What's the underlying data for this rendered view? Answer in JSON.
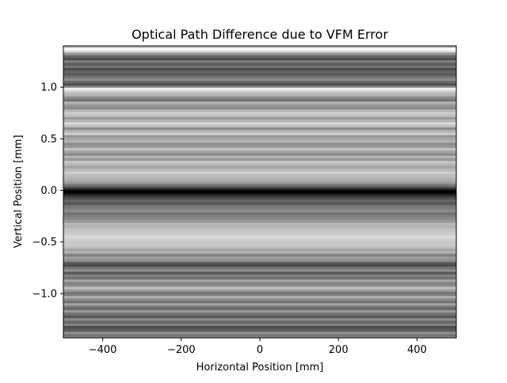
{
  "chart_data": {
    "type": "heatmap",
    "title": "Optical Path Difference due to VFM Error",
    "xlabel": "Horizontal Position [mm]",
    "ylabel": "Vertical Position [mm]",
    "xlim": [
      -500,
      500
    ],
    "ylim": [
      -1.43,
      1.4
    ],
    "xticks": [
      -400,
      -200,
      0,
      200,
      400
    ],
    "xtick_labels": [
      "−400",
      "−200",
      "0",
      "200",
      "400"
    ],
    "yticks": [
      -1.0,
      -0.5,
      0.0,
      0.5,
      1.0
    ],
    "ytick_labels": [
      "−1.0",
      "−0.5",
      "0.0",
      "0.5",
      "1.0"
    ],
    "colormap": "gray",
    "grid": false,
    "colorbar": false,
    "note_variation": "values constant along horizontal axis; vary only with vertical position",
    "profile_vertical_mm": [
      -1.43,
      -1.4,
      -1.38,
      -1.35,
      -1.32,
      -1.3,
      -1.27,
      -1.25,
      -1.22,
      -1.19,
      -1.17,
      -1.14,
      -1.12,
      -1.1,
      -1.08,
      -1.05,
      -1.03,
      -1.01,
      -0.99,
      -0.97,
      -0.94,
      -0.92,
      -0.9,
      -0.87,
      -0.85,
      -0.82,
      -0.8,
      -0.77,
      -0.75,
      -0.72,
      -0.7,
      -0.68,
      -0.65,
      -0.62,
      -0.6,
      -0.57,
      -0.55,
      -0.52,
      -0.5,
      -0.47,
      -0.45,
      -0.42,
      -0.4,
      -0.37,
      -0.35,
      -0.32,
      -0.3,
      -0.27,
      -0.25,
      -0.22,
      -0.2,
      -0.17,
      -0.15,
      -0.12,
      -0.1,
      -0.07,
      -0.05,
      -0.03,
      -0.01,
      0.0,
      0.01,
      0.03,
      0.05,
      0.08,
      0.1,
      0.13,
      0.15,
      0.18,
      0.2,
      0.23,
      0.25,
      0.28,
      0.3,
      0.33,
      0.35,
      0.38,
      0.4,
      0.43,
      0.45,
      0.48,
      0.5,
      0.53,
      0.55,
      0.58,
      0.6,
      0.63,
      0.65,
      0.68,
      0.7,
      0.73,
      0.75,
      0.78,
      0.8,
      0.83,
      0.85,
      0.88,
      0.9,
      0.93,
      0.95,
      0.97,
      0.99,
      1.01,
      1.03,
      1.05,
      1.08,
      1.1,
      1.13,
      1.15,
      1.18,
      1.2,
      1.23,
      1.25,
      1.28,
      1.3,
      1.33,
      1.35,
      1.37,
      1.4
    ],
    "profile_intensity": [
      0.6,
      0.45,
      0.55,
      0.35,
      0.3,
      0.5,
      0.4,
      0.55,
      0.35,
      0.45,
      0.6,
      0.4,
      0.5,
      0.65,
      0.45,
      0.55,
      0.7,
      0.5,
      0.45,
      0.6,
      0.75,
      0.55,
      0.5,
      0.65,
      0.45,
      0.5,
      0.35,
      0.55,
      0.45,
      0.3,
      0.35,
      0.55,
      0.6,
      0.5,
      0.7,
      0.65,
      0.75,
      0.8,
      0.78,
      0.82,
      0.85,
      0.8,
      0.78,
      0.75,
      0.7,
      0.72,
      0.6,
      0.55,
      0.5,
      0.45,
      0.55,
      0.5,
      0.45,
      0.35,
      0.4,
      0.3,
      0.2,
      0.08,
      0.0,
      0.02,
      0.1,
      0.3,
      0.45,
      0.6,
      0.68,
      0.72,
      0.75,
      0.8,
      0.72,
      0.65,
      0.7,
      0.78,
      0.6,
      0.7,
      0.55,
      0.65,
      0.75,
      0.6,
      0.55,
      0.7,
      0.65,
      0.6,
      0.8,
      0.7,
      0.55,
      0.75,
      0.85,
      0.7,
      0.6,
      0.75,
      0.8,
      0.7,
      0.55,
      0.6,
      0.7,
      0.45,
      0.55,
      0.7,
      0.75,
      0.85,
      0.95,
      0.5,
      0.3,
      0.4,
      0.55,
      0.45,
      0.35,
      0.4,
      0.3,
      0.45,
      0.35,
      0.5,
      0.3,
      0.4,
      0.6,
      0.85,
      1.0,
      0.7
    ]
  }
}
